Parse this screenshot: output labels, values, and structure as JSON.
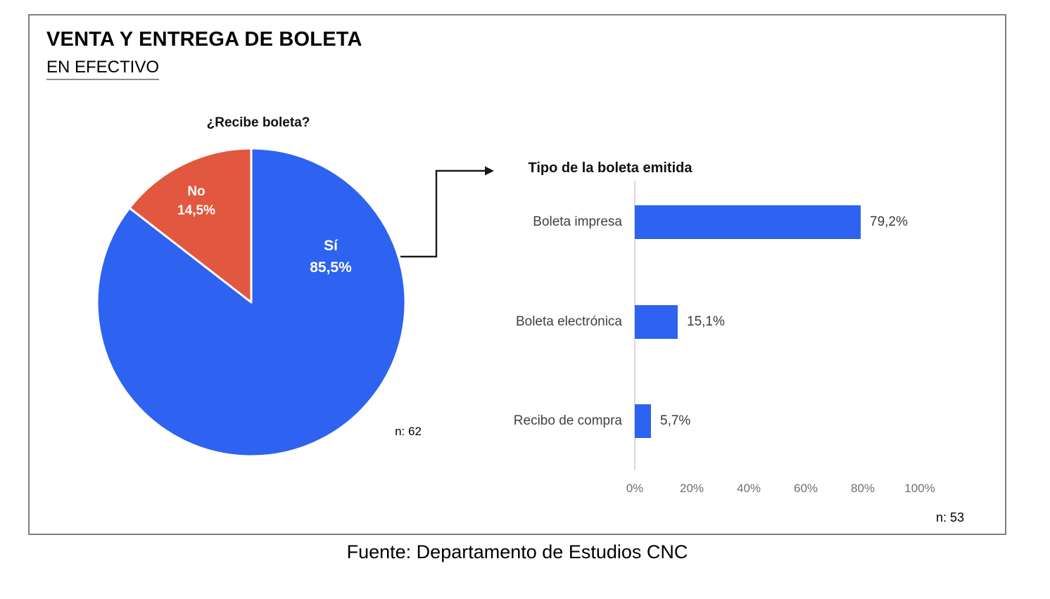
{
  "header": {
    "title": "VENTA Y ENTREGA DE BOLETA",
    "subtitle": "EN EFECTIVO"
  },
  "footer": {
    "source": "Fuente: Departamento de Estudios CNC"
  },
  "colors": {
    "bar_blue": "#2d63f0",
    "pie_blue": "#2d63f0",
    "pie_red": "#e2573f",
    "axis_gray": "#d9d9d9",
    "frame_border": "#7f7f7f",
    "category_label": "#404040",
    "tick_label": "#6f6f6f",
    "arrow_black": "#1a1a1a"
  },
  "chart_data": [
    {
      "type": "pie",
      "title": "¿Recibe boleta?",
      "labels": [
        "Sí",
        "No"
      ],
      "values": [
        85.5,
        14.5
      ],
      "value_labels": [
        "85,5%",
        "14,5%"
      ],
      "colors": [
        "#2d63f0",
        "#e2573f"
      ],
      "start_angle_deg": 0,
      "direction": "clockwise",
      "n_label": "n: 62"
    },
    {
      "type": "bar",
      "orientation": "horizontal",
      "title": "Tipo de la boleta emitida",
      "categories": [
        "Boleta impresa",
        "Boleta electrónica",
        "Recibo de compra"
      ],
      "values": [
        79.2,
        15.1,
        5.7
      ],
      "value_labels": [
        "79,2%",
        "15,1%",
        "5,7%"
      ],
      "x_ticks": [
        "0%",
        "20%",
        "40%",
        "60%",
        "80%",
        "100%"
      ],
      "xlim": [
        0,
        100
      ],
      "grid": false,
      "legend": false,
      "n_label": "n: 53"
    }
  ]
}
